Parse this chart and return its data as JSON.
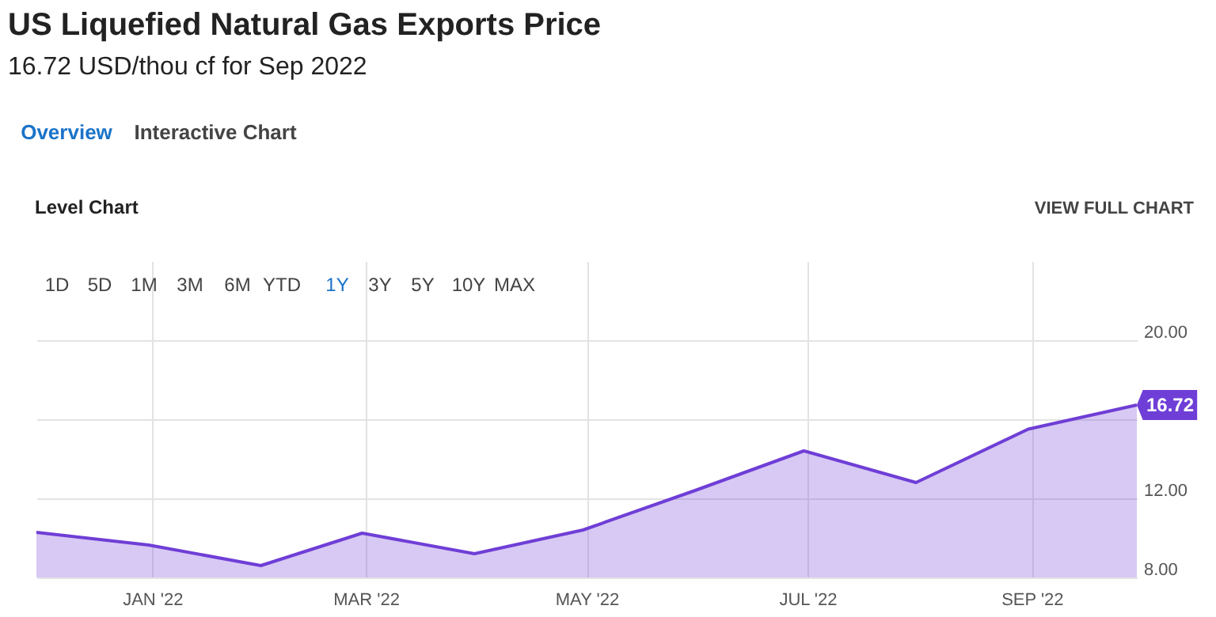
{
  "chart_data": {
    "type": "area",
    "title": "US Liquefied Natural Gas Exports Price",
    "subtitle": "16.72 USD/thou cf for Sep 2022",
    "x": [
      "2021-11-30",
      "2021-12-31",
      "2022-01-31",
      "2022-02-28",
      "2022-03-31",
      "2022-04-30",
      "2022-05-31",
      "2022-06-30",
      "2022-07-31",
      "2022-08-31",
      "2022-09-30"
    ],
    "series": [
      {
        "color": "#6f3ed6",
        "values": [
          10.28,
          9.64,
          8.6,
          10.24,
          9.2,
          10.4,
          12.4,
          14.4,
          12.8,
          15.5,
          16.72
        ]
      }
    ],
    "xlim": [
      "2021-11-30",
      "2022-09-30"
    ],
    "xticks": [
      {
        "value": "2022-01-01",
        "label": "JAN '22"
      },
      {
        "value": "2022-03-01",
        "label": "MAR '22"
      },
      {
        "value": "2022-05-01",
        "label": "MAY '22"
      },
      {
        "value": "2022-07-01",
        "label": "JUL '22"
      },
      {
        "value": "2022-09-01",
        "label": "SEP '22"
      }
    ],
    "ylim": [
      8,
      24
    ],
    "yticks": [
      {
        "value": 8,
        "label": "8.00"
      },
      {
        "value": 12,
        "label": "12.00"
      },
      {
        "value": 16,
        "label": null
      },
      {
        "value": 20,
        "label": "20.00"
      }
    ],
    "grid": true,
    "annotations": [
      "Overview",
      "Interactive Chart",
      "Level Chart",
      "VIEW FULL CHART",
      "1D",
      "5D",
      "1M",
      "3M",
      "6M",
      "YTD",
      "1Y",
      "3Y",
      "5Y",
      "10Y",
      "MAX",
      {
        "text": "16.72",
        "x": "2022-09-30",
        "y": 16.72
      }
    ]
  }
}
